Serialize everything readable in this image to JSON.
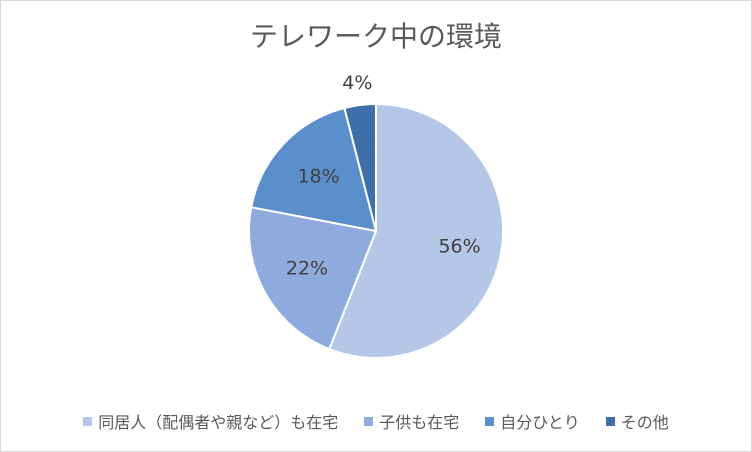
{
  "chart_data": {
    "type": "pie",
    "title": "テレワーク中の環境",
    "slices": [
      {
        "name": "同居人（配偶者や親など）も在宅",
        "value": 56,
        "label": "56%",
        "color": "#b4c7e7"
      },
      {
        "name": "子供も在宅",
        "value": 22,
        "label": "22%",
        "color": "#8faadc"
      },
      {
        "name": "自分ひとり",
        "value": 18,
        "label": "18%",
        "color": "#5b8fcb"
      },
      {
        "name": "その他",
        "value": 4,
        "label": "4%",
        "color": "#3f6fa8"
      }
    ],
    "legend_position": "bottom"
  }
}
